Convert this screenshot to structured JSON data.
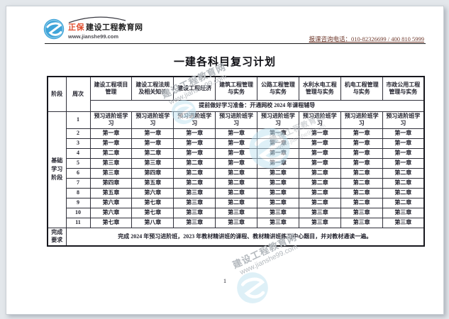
{
  "brand": {
    "prefix": "正保",
    "name": "建设工程教育网",
    "url": "www.jianshe99.com"
  },
  "header": {
    "contact": "报课咨询电话：010-82326699 / 400 810 5999"
  },
  "title": "一建各科目复习计划",
  "watermark": {
    "line1": "建设工程教育网",
    "line2": "www.jianshe99.com"
  },
  "table": {
    "headers": [
      "阶段",
      "周次",
      "建设工程项目管理",
      "建设工程法规及相关知识",
      "建设工程经济",
      "建筑工程管理与实务",
      "公路工程管理与实务",
      "水利水电工程管理与实务",
      "机电工程管理与实务",
      "市政公用工程管理与实务"
    ],
    "prep_note": "提前做好学习准备：开通网校 2024 年课程辅导",
    "stage_label": "基础学习阶段",
    "weeks": [
      {
        "week": "1",
        "cells": [
          "预习进阶班学习",
          "预习进阶班学习",
          "预习进阶班学习",
          "预习进阶班学习",
          "预习进阶班学习",
          "预习进阶班学习",
          "预习进阶班学习",
          "预习进阶班学习"
        ]
      },
      {
        "week": "2",
        "cells": [
          "第一章",
          "第一章",
          "第一章",
          "第一章",
          "第一章",
          "第一章",
          "第一章",
          "第一章"
        ]
      },
      {
        "week": "3",
        "cells": [
          "第一章",
          "第一章",
          "第一章",
          "第一章",
          "第一章",
          "第一章",
          "第一章",
          "第一章"
        ]
      },
      {
        "week": "4",
        "cells": [
          "第二章",
          "第二章",
          "第一章",
          "第一章",
          "第一章",
          "第一章",
          "第一章",
          "第一章"
        ]
      },
      {
        "week": "5",
        "cells": [
          "第三章",
          "第三章",
          "第二章",
          "第一章",
          "第一章",
          "第一章",
          "第一章",
          "第一章"
        ]
      },
      {
        "week": "6",
        "cells": [
          "第三章",
          "第四章",
          "第二章",
          "第二章",
          "第二章",
          "第二章",
          "第二章",
          "第二章"
        ]
      },
      {
        "week": "7",
        "cells": [
          "第四章",
          "第五章",
          "第二章",
          "第二章",
          "第二章",
          "第二章",
          "第二章",
          "第二章"
        ]
      },
      {
        "week": "8",
        "cells": [
          "第五章",
          "第六章",
          "第三章",
          "第二章",
          "第二章",
          "第二章",
          "第二章",
          "第二章"
        ]
      },
      {
        "week": "9",
        "cells": [
          "第六章",
          "第七章",
          "第三章",
          "第二章",
          "第二章",
          "第二章",
          "第二章",
          "第二章"
        ]
      },
      {
        "week": "10",
        "cells": [
          "第六章",
          "第七章",
          "第三章",
          "第三章",
          "第三章",
          "第三章",
          "第三章",
          "第三章"
        ]
      },
      {
        "week": "11",
        "cells": [
          "第七章",
          "第八章",
          "第三章",
          "第三章",
          "第三章",
          "第三章",
          "第三章",
          "第三章"
        ]
      }
    ],
    "footer_label": "完成要求",
    "footer_text": "完成 2024 年预习进阶班，2023 年教材精讲班的课程、教材精讲班练习中心题目，并对教材通读一遍。"
  },
  "footer": {
    "page_number": "1"
  },
  "colors": {
    "brand_blue": "#3fa4d9",
    "brand_orange": "#e04e2e",
    "contact_red": "#6e372a",
    "watermark_gray": "#b4b9be"
  }
}
